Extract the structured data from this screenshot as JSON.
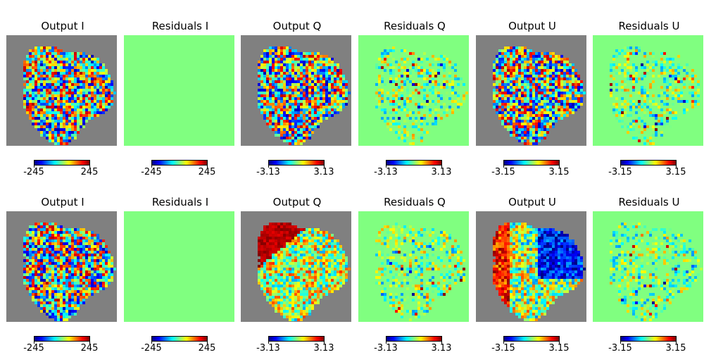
{
  "background_color": "#808080",
  "residual_color": "#80ff80",
  "colormap": "jet",
  "chart_data": [
    {
      "type": "heatmap",
      "title": "Output I",
      "colorbar": {
        "min": -245,
        "max": 245,
        "min_label": "-245",
        "max_label": "245"
      },
      "kind": "output",
      "pattern": "noise"
    },
    {
      "type": "heatmap",
      "title": "Residuals I",
      "colorbar": {
        "min": -245,
        "max": 245,
        "min_label": "-245",
        "max_label": "245"
      },
      "kind": "residual",
      "pattern": "flat"
    },
    {
      "type": "heatmap",
      "title": "Output Q",
      "colorbar": {
        "min": -3.13,
        "max": 3.13,
        "min_label": "-3.13",
        "max_label": "3.13"
      },
      "kind": "output",
      "pattern": "noise"
    },
    {
      "type": "heatmap",
      "title": "Residuals Q",
      "colorbar": {
        "min": -3.13,
        "max": 3.13,
        "min_label": "-3.13",
        "max_label": "3.13"
      },
      "kind": "residual",
      "pattern": "sparse"
    },
    {
      "type": "heatmap",
      "title": "Output U",
      "colorbar": {
        "min": -3.15,
        "max": 3.15,
        "min_label": "-3.15",
        "max_label": "3.15"
      },
      "kind": "output",
      "pattern": "noise"
    },
    {
      "type": "heatmap",
      "title": "Residuals U",
      "colorbar": {
        "min": -3.15,
        "max": 3.15,
        "min_label": "-3.15",
        "max_label": "3.15"
      },
      "kind": "residual",
      "pattern": "sparse"
    },
    {
      "type": "heatmap",
      "title": "Output I",
      "colorbar": {
        "min": -245,
        "max": 245,
        "min_label": "-245",
        "max_label": "245"
      },
      "kind": "output",
      "pattern": "noise"
    },
    {
      "type": "heatmap",
      "title": "Residuals I",
      "colorbar": {
        "min": -245,
        "max": 245,
        "min_label": "-245",
        "max_label": "245"
      },
      "kind": "residual",
      "pattern": "flat"
    },
    {
      "type": "heatmap",
      "title": "Output Q",
      "colorbar": {
        "min": -3.13,
        "max": 3.13,
        "min_label": "-3.13",
        "max_label": "3.13"
      },
      "kind": "output",
      "pattern": "hot-top-left"
    },
    {
      "type": "heatmap",
      "title": "Residuals Q",
      "colorbar": {
        "min": -3.13,
        "max": 3.13,
        "min_label": "-3.13",
        "max_label": "3.13"
      },
      "kind": "residual",
      "pattern": "sparse"
    },
    {
      "type": "heatmap",
      "title": "Output U",
      "colorbar": {
        "min": -3.15,
        "max": 3.15,
        "min_label": "-3.15",
        "max_label": "3.15"
      },
      "kind": "output",
      "pattern": "left-hot-right-cold"
    },
    {
      "type": "heatmap",
      "title": "Residuals U",
      "colorbar": {
        "min": -3.15,
        "max": 3.15,
        "min_label": "-3.15",
        "max_label": "3.15"
      },
      "kind": "residual",
      "pattern": "sparse"
    }
  ]
}
